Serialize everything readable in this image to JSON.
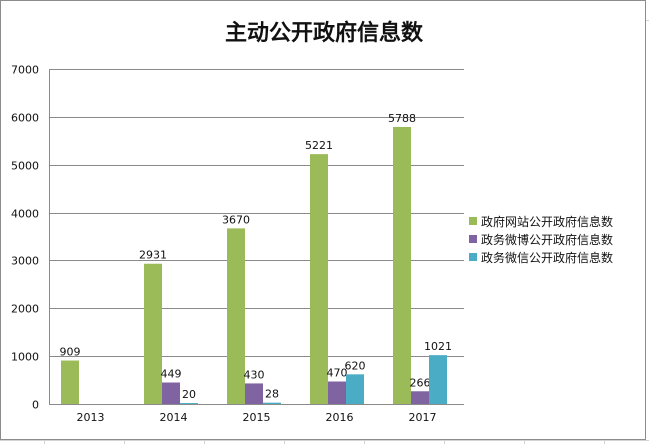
{
  "chart_data": {
    "type": "bar",
    "title": "主动公开政府信息数",
    "categories": [
      "2013",
      "2014",
      "2015",
      "2016",
      "2017"
    ],
    "ylim": [
      0,
      7000
    ],
    "yticks": [
      "0",
      "1000",
      "2000",
      "3000",
      "4000",
      "5000",
      "6000",
      "7000"
    ],
    "grid": true,
    "legend_position": "right",
    "series": [
      {
        "name": "政府网站公开政府信息数",
        "color": "#9bbb59",
        "values": [
          909,
          2931,
          3670,
          5221,
          5788
        ],
        "labels": [
          "909",
          "2931",
          "3670",
          "5221",
          "5788"
        ]
      },
      {
        "name": "政务微博公开政府信息数",
        "color": "#8064a2",
        "values": [
          null,
          449,
          430,
          470,
          266
        ],
        "labels": [
          "",
          "449",
          "430",
          "470",
          "266"
        ]
      },
      {
        "name": "政务微信公开政府信息数",
        "color": "#4bacc6",
        "values": [
          null,
          20,
          28,
          620,
          1021
        ],
        "labels": [
          "",
          "20",
          "28",
          "620",
          "1021"
        ]
      }
    ]
  }
}
